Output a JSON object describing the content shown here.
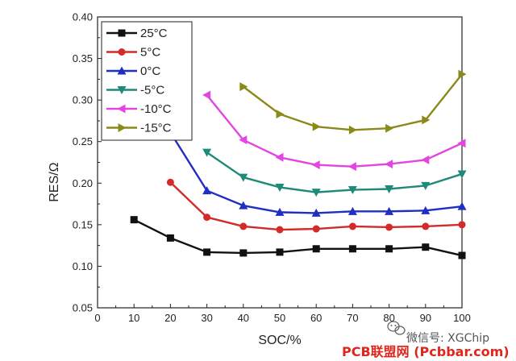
{
  "chart_data": {
    "type": "line",
    "title": "",
    "xlabel": "SOC/%",
    "ylabel": "RES/Ω",
    "xlim": [
      0,
      100
    ],
    "ylim": [
      0.05,
      0.4
    ],
    "xticks": [
      "0",
      "10",
      "20",
      "30",
      "40",
      "50",
      "60",
      "70",
      "80",
      "90",
      "100"
    ],
    "yticks": [
      "0.05",
      "0.10",
      "0.15",
      "0.20",
      "0.25",
      "0.30",
      "0.35",
      "0.40"
    ],
    "grid": false,
    "legend_position": "top-left",
    "series": [
      {
        "name": "25°C",
        "color": "#111111",
        "marker": "square",
        "x": [
          10,
          20,
          30,
          40,
          50,
          60,
          70,
          80,
          90,
          100
        ],
        "y": [
          0.156,
          0.134,
          0.117,
          0.116,
          0.117,
          0.121,
          0.121,
          0.121,
          0.123,
          0.113
        ]
      },
      {
        "name": "5°C",
        "color": "#d42a2a",
        "marker": "circle",
        "x": [
          20,
          30,
          40,
          50,
          60,
          70,
          80,
          90,
          100
        ],
        "y": [
          0.201,
          0.159,
          0.148,
          0.144,
          0.145,
          0.148,
          0.147,
          0.148,
          0.15
        ]
      },
      {
        "name": "0°C",
        "color": "#1f2fc4",
        "marker": "triangle-up",
        "x": [
          20,
          30,
          40,
          50,
          60,
          70,
          80,
          90,
          100
        ],
        "y": [
          0.261,
          0.191,
          0.173,
          0.165,
          0.164,
          0.166,
          0.166,
          0.167,
          0.172
        ]
      },
      {
        "name": "-5°C",
        "color": "#1d8a7a",
        "marker": "triangle-down",
        "x": [
          30,
          40,
          50,
          60,
          70,
          80,
          90,
          100
        ],
        "y": [
          0.237,
          0.207,
          0.195,
          0.189,
          0.192,
          0.193,
          0.197,
          0.211
        ]
      },
      {
        "name": "-10°C",
        "color": "#e245e2",
        "marker": "triangle-left",
        "x": [
          30,
          40,
          50,
          60,
          70,
          80,
          90,
          100
        ],
        "y": [
          0.306,
          0.252,
          0.231,
          0.222,
          0.22,
          0.223,
          0.228,
          0.248
        ]
      },
      {
        "name": "-15°C",
        "color": "#8a8a1a",
        "marker": "triangle-right",
        "x": [
          40,
          50,
          60,
          70,
          80,
          90,
          100
        ],
        "y": [
          0.316,
          0.283,
          0.268,
          0.264,
          0.266,
          0.276,
          0.331
        ]
      }
    ]
  },
  "watermark": {
    "wechat_icon": "wechat-icon",
    "account_text": "微信号: XGChip",
    "site_text": "PCB联盟网 (Pcbbar.com)"
  }
}
